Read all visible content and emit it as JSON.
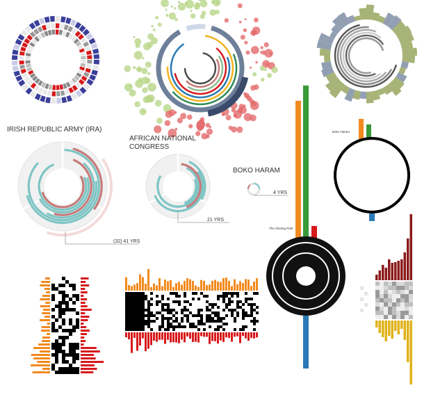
{
  "labels": {
    "ira": "IRISH REPUBLIC ARMY (IRA)",
    "anc_line1": "AFRICAN NATIONAL",
    "anc_line2": "CONGRESS",
    "boko": "BOKO HARAM",
    "boko_small": "Boko Haram",
    "shining_path": "The Shining Path",
    "ira_years": "(32) 41 YRS",
    "anc_years": "21 YRS",
    "boko_years": "4 YRS"
  },
  "colors": {
    "red": "#d7191c",
    "navy": "#3a3f9a",
    "teal": "#7ec5c4",
    "rose": "#c77a7a",
    "lightgray": "#e8e8e8",
    "orange": "#f28a1f",
    "green": "#3a9a3a",
    "blue": "#2a7ab5",
    "darkred": "#8b1a1a",
    "gold": "#e0b21a",
    "olive": "#8a9a4a",
    "slate": "#6e7f9a",
    "bubblegreen": "#b9d68a",
    "bubblered": "#e36b6b"
  }
}
